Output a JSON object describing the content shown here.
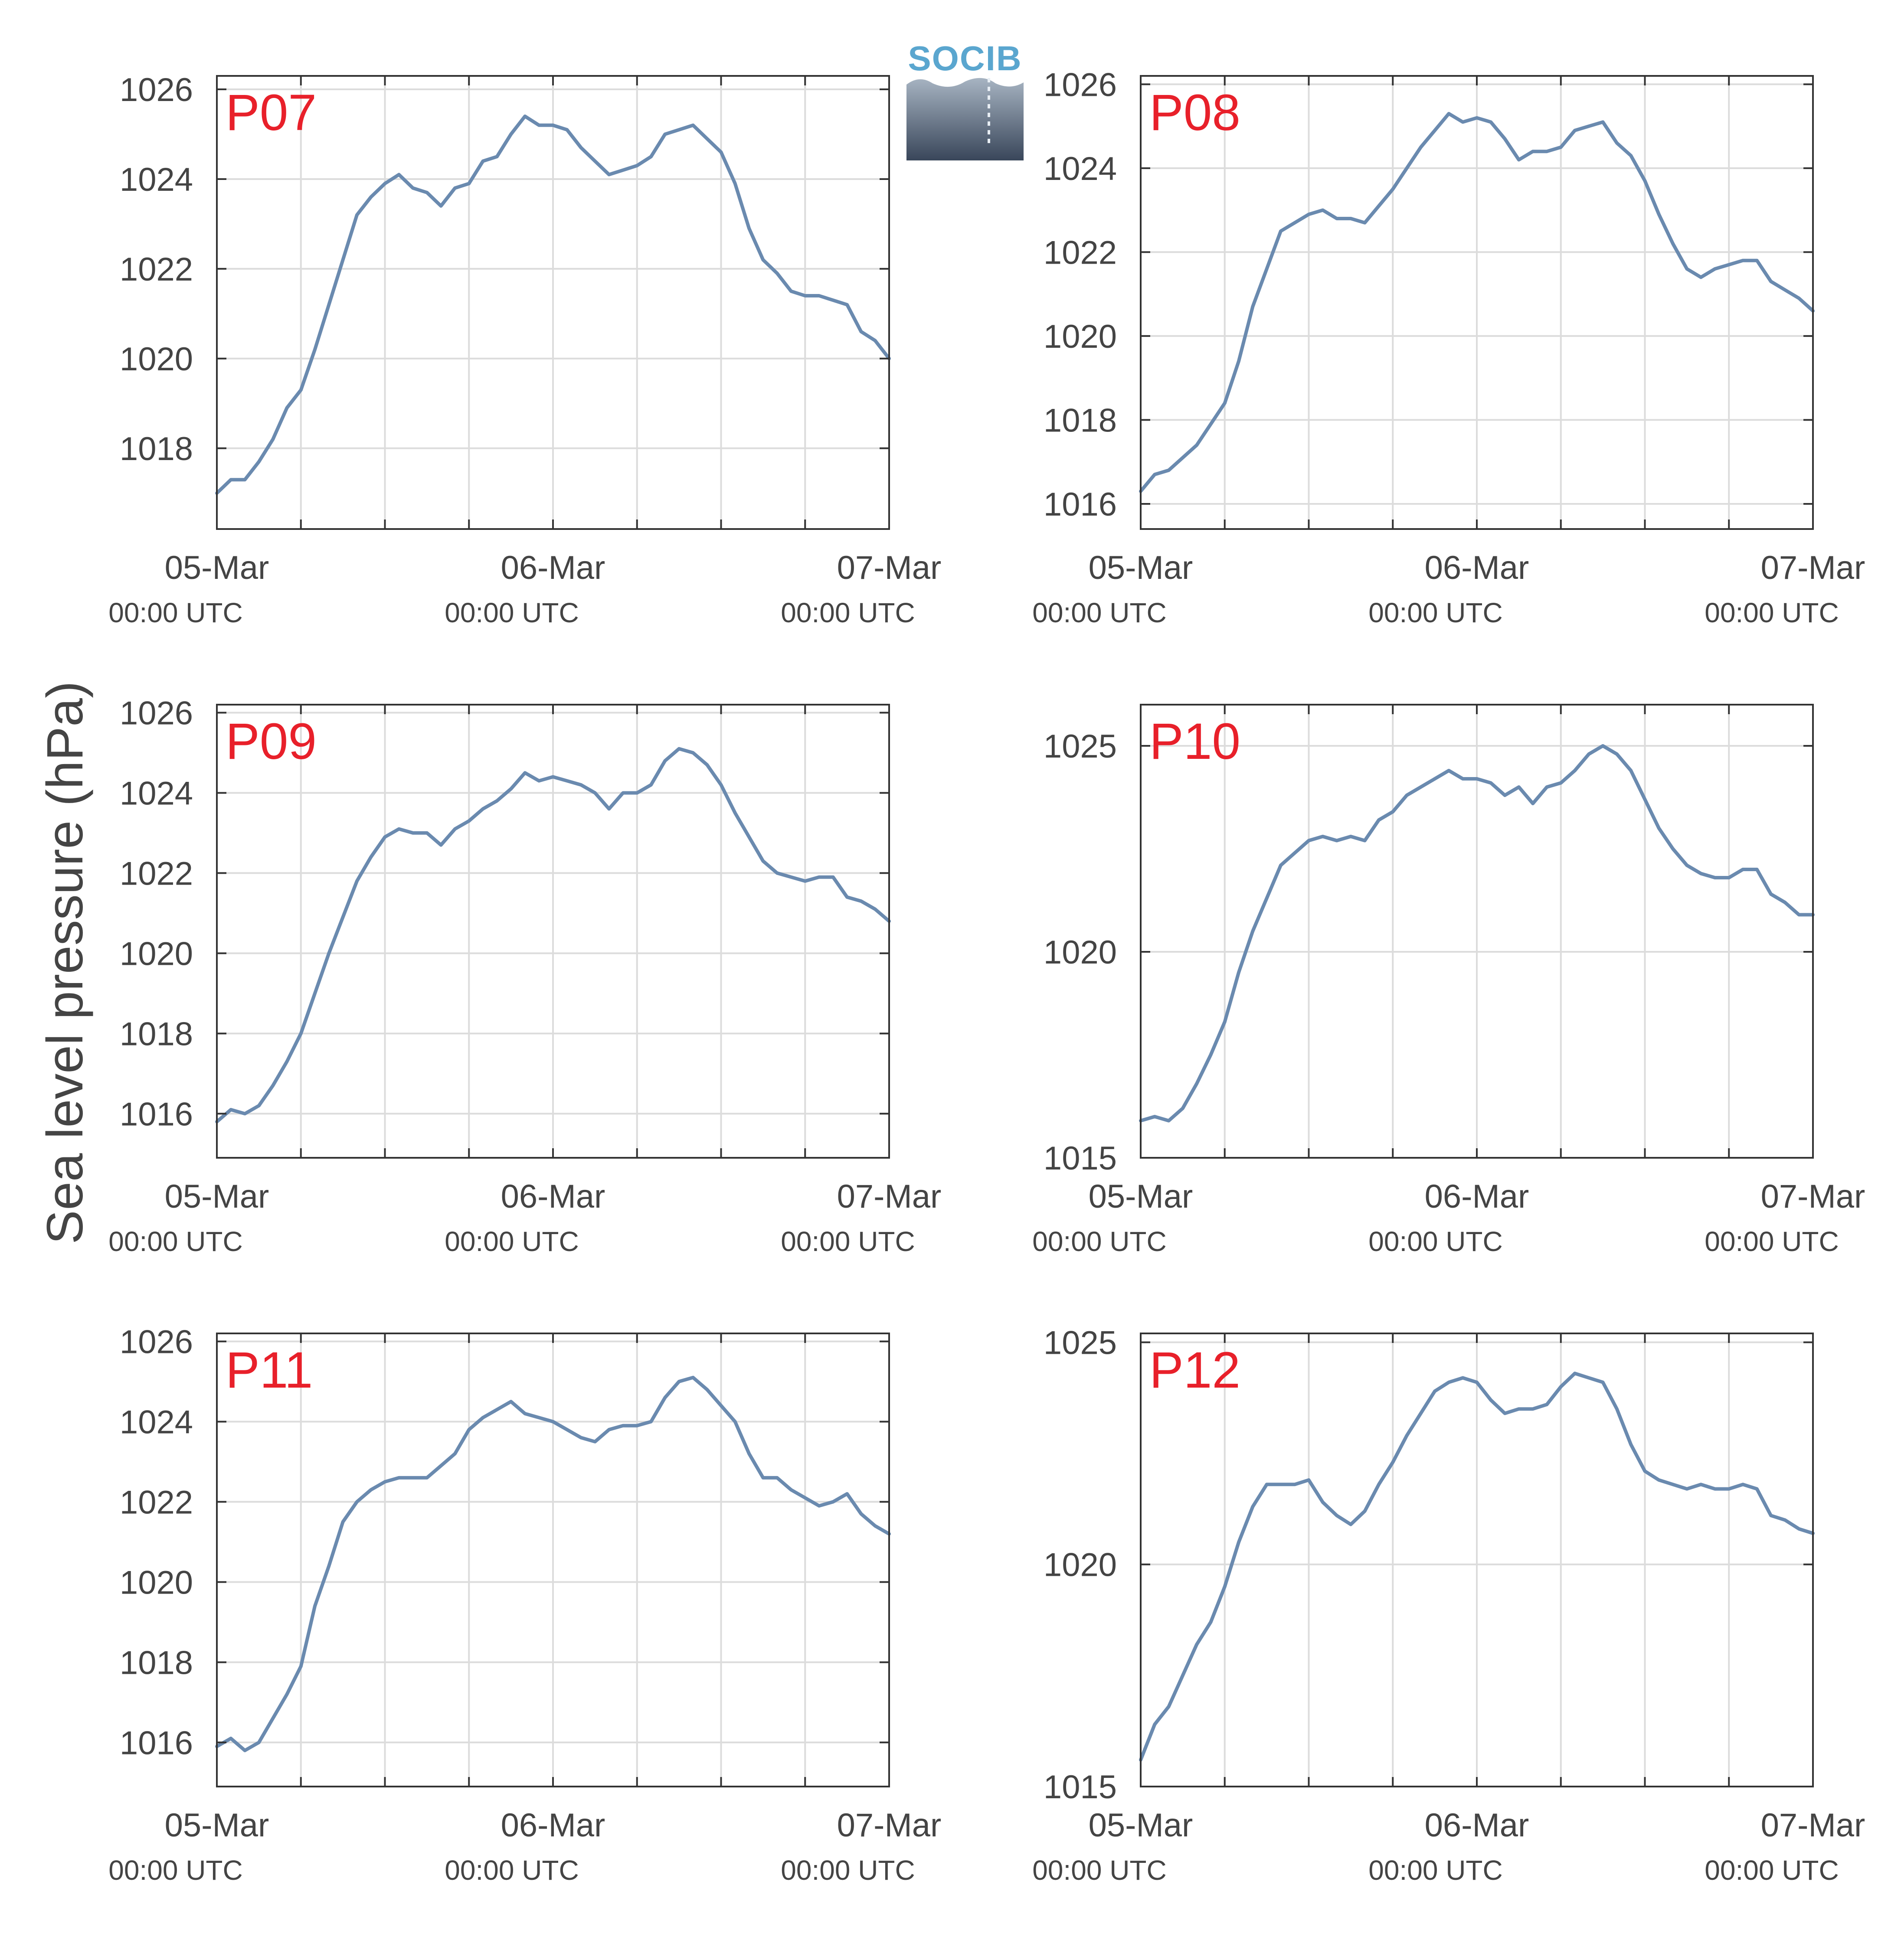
{
  "figure": {
    "ylabel": "Sea level pressure (hPa)",
    "logo_text": "SOCIB",
    "line_color": "#6a8aaf",
    "label_color": "#e8202a",
    "grid_color": "#dcdcdc",
    "axis_color": "#333333",
    "text_color": "#444444"
  },
  "chart_data": [
    {
      "type": "line",
      "panel_label": "P07",
      "xlim": [
        0,
        48
      ],
      "ylim": [
        1016.2,
        1026.3
      ],
      "yticks": [
        1018,
        1020,
        1022,
        1024,
        1026
      ],
      "xticks": [
        {
          "x": 0,
          "label": "05-Mar",
          "sublabel": "00:00 UTC"
        },
        {
          "x": 24,
          "label": "06-Mar",
          "sublabel": "00:00 UTC"
        },
        {
          "x": 48,
          "label": "07-Mar",
          "sublabel": "00:00 UTC"
        }
      ],
      "x_unit": "hours since 05-Mar 00:00 UTC",
      "x": [
        0,
        1,
        2,
        3,
        4,
        5,
        6,
        7,
        8,
        9,
        10,
        11,
        12,
        13,
        14,
        15,
        16,
        17,
        18,
        19,
        20,
        21,
        22,
        23,
        24,
        25,
        26,
        27,
        28,
        29,
        30,
        31,
        32,
        33,
        34,
        35,
        36,
        37,
        38,
        39,
        40,
        41,
        42,
        43,
        44,
        45,
        46,
        47,
        48
      ],
      "values": [
        1017.0,
        1017.3,
        1017.3,
        1017.7,
        1018.2,
        1018.9,
        1019.3,
        1020.2,
        1021.2,
        1022.2,
        1023.2,
        1023.6,
        1023.9,
        1024.1,
        1023.8,
        1023.7,
        1023.4,
        1023.8,
        1023.9,
        1024.4,
        1024.5,
        1025.0,
        1025.4,
        1025.2,
        1025.2,
        1025.1,
        1024.7,
        1024.4,
        1024.1,
        1024.2,
        1024.3,
        1024.5,
        1025.0,
        1025.1,
        1025.2,
        1024.9,
        1024.6,
        1023.9,
        1022.9,
        1022.2,
        1021.9,
        1021.5,
        1021.4,
        1021.4,
        1021.3,
        1021.2,
        1020.6,
        1020.4,
        1020.0
      ]
    },
    {
      "type": "line",
      "panel_label": "P08",
      "xlim": [
        0,
        48
      ],
      "ylim": [
        1015.4,
        1026.2
      ],
      "yticks": [
        1016,
        1018,
        1020,
        1022,
        1024,
        1026
      ],
      "xticks": [
        {
          "x": 0,
          "label": "05-Mar",
          "sublabel": "00:00 UTC"
        },
        {
          "x": 24,
          "label": "06-Mar",
          "sublabel": "00:00 UTC"
        },
        {
          "x": 48,
          "label": "07-Mar",
          "sublabel": "00:00 UTC"
        }
      ],
      "x_unit": "hours since 05-Mar 00:00 UTC",
      "x": [
        0,
        1,
        2,
        3,
        4,
        5,
        6,
        7,
        8,
        9,
        10,
        11,
        12,
        13,
        14,
        15,
        16,
        17,
        18,
        19,
        20,
        21,
        22,
        23,
        24,
        25,
        26,
        27,
        28,
        29,
        30,
        31,
        32,
        33,
        34,
        35,
        36,
        37,
        38,
        39,
        40,
        41,
        42,
        43,
        44,
        45,
        46,
        47,
        48
      ],
      "values": [
        1016.3,
        1016.7,
        1016.8,
        1017.1,
        1017.4,
        1017.9,
        1018.4,
        1019.4,
        1020.7,
        1021.6,
        1022.5,
        1022.7,
        1022.9,
        1023.0,
        1022.8,
        1022.8,
        1022.7,
        1023.1,
        1023.5,
        1024.0,
        1024.5,
        1024.9,
        1025.3,
        1025.1,
        1025.2,
        1025.1,
        1024.7,
        1024.2,
        1024.4,
        1024.4,
        1024.5,
        1024.9,
        1025.0,
        1025.1,
        1024.6,
        1024.3,
        1023.7,
        1022.9,
        1022.2,
        1021.6,
        1021.4,
        1021.6,
        1021.7,
        1021.8,
        1021.8,
        1021.3,
        1021.1,
        1020.9,
        1020.6
      ]
    },
    {
      "type": "line",
      "panel_label": "P09",
      "xlim": [
        0,
        48
      ],
      "ylim": [
        1014.9,
        1026.2
      ],
      "yticks": [
        1016,
        1018,
        1020,
        1022,
        1024,
        1026
      ],
      "xticks": [
        {
          "x": 0,
          "label": "05-Mar",
          "sublabel": "00:00 UTC"
        },
        {
          "x": 24,
          "label": "06-Mar",
          "sublabel": "00:00 UTC"
        },
        {
          "x": 48,
          "label": "07-Mar",
          "sublabel": "00:00 UTC"
        }
      ],
      "x_unit": "hours since 05-Mar 00:00 UTC",
      "x": [
        0,
        1,
        2,
        3,
        4,
        5,
        6,
        7,
        8,
        9,
        10,
        11,
        12,
        13,
        14,
        15,
        16,
        17,
        18,
        19,
        20,
        21,
        22,
        23,
        24,
        25,
        26,
        27,
        28,
        29,
        30,
        31,
        32,
        33,
        34,
        35,
        36,
        37,
        38,
        39,
        40,
        41,
        42,
        43,
        44,
        45,
        46,
        47,
        48
      ],
      "values": [
        1015.8,
        1016.1,
        1016.0,
        1016.2,
        1016.7,
        1017.3,
        1018.0,
        1019.0,
        1020.0,
        1020.9,
        1021.8,
        1022.4,
        1022.9,
        1023.1,
        1023.0,
        1023.0,
        1022.7,
        1023.1,
        1023.3,
        1023.6,
        1023.8,
        1024.1,
        1024.5,
        1024.3,
        1024.4,
        1024.3,
        1024.2,
        1024.0,
        1023.6,
        1024.0,
        1024.0,
        1024.2,
        1024.8,
        1025.1,
        1025.0,
        1024.7,
        1024.2,
        1023.5,
        1022.9,
        1022.3,
        1022.0,
        1021.9,
        1021.8,
        1021.9,
        1021.9,
        1021.4,
        1021.3,
        1021.1,
        1020.8
      ]
    },
    {
      "type": "line",
      "panel_label": "P10",
      "xlim": [
        0,
        48
      ],
      "ylim": [
        1015,
        1026
      ],
      "yticks": [
        1015,
        1020,
        1025
      ],
      "xticks": [
        {
          "x": 0,
          "label": "05-Mar",
          "sublabel": "00:00 UTC"
        },
        {
          "x": 24,
          "label": "06-Mar",
          "sublabel": "00:00 UTC"
        },
        {
          "x": 48,
          "label": "07-Mar",
          "sublabel": "00:00 UTC"
        }
      ],
      "x_unit": "hours since 05-Mar 00:00 UTC",
      "x": [
        0,
        1,
        2,
        3,
        4,
        5,
        6,
        7,
        8,
        9,
        10,
        11,
        12,
        13,
        14,
        15,
        16,
        17,
        18,
        19,
        20,
        21,
        22,
        23,
        24,
        25,
        26,
        27,
        28,
        29,
        30,
        31,
        32,
        33,
        34,
        35,
        36,
        37,
        38,
        39,
        40,
        41,
        42,
        43,
        44,
        45,
        46,
        47,
        48
      ],
      "values": [
        1015.9,
        1016.0,
        1015.9,
        1016.2,
        1016.8,
        1017.5,
        1018.3,
        1019.5,
        1020.5,
        1021.3,
        1022.1,
        1022.4,
        1022.7,
        1022.8,
        1022.7,
        1022.8,
        1022.7,
        1023.2,
        1023.4,
        1023.8,
        1024.0,
        1024.2,
        1024.4,
        1024.2,
        1024.2,
        1024.1,
        1023.8,
        1024.0,
        1023.6,
        1024.0,
        1024.1,
        1024.4,
        1024.8,
        1025.0,
        1024.8,
        1024.4,
        1023.7,
        1023.0,
        1022.5,
        1022.1,
        1021.9,
        1021.8,
        1021.8,
        1022.0,
        1022.0,
        1021.4,
        1021.2,
        1020.9,
        1020.9
      ]
    },
    {
      "type": "line",
      "panel_label": "P11",
      "xlim": [
        0,
        48
      ],
      "ylim": [
        1014.9,
        1026.2
      ],
      "yticks": [
        1016,
        1018,
        1020,
        1022,
        1024,
        1026
      ],
      "xticks": [
        {
          "x": 0,
          "label": "05-Mar",
          "sublabel": "00:00 UTC"
        },
        {
          "x": 24,
          "label": "06-Mar",
          "sublabel": "00:00 UTC"
        },
        {
          "x": 48,
          "label": "07-Mar",
          "sublabel": "00:00 UTC"
        }
      ],
      "x_unit": "hours since 05-Mar 00:00 UTC",
      "x": [
        0,
        1,
        2,
        3,
        4,
        5,
        6,
        7,
        8,
        9,
        10,
        11,
        12,
        13,
        14,
        15,
        16,
        17,
        18,
        19,
        20,
        21,
        22,
        23,
        24,
        25,
        26,
        27,
        28,
        29,
        30,
        31,
        32,
        33,
        34,
        35,
        36,
        37,
        38,
        39,
        40,
        41,
        42,
        43,
        44,
        45,
        46,
        47,
        48
      ],
      "values": [
        1015.9,
        1016.1,
        1015.8,
        1016.0,
        1016.6,
        1017.2,
        1017.9,
        1019.4,
        1020.4,
        1021.5,
        1022.0,
        1022.3,
        1022.5,
        1022.6,
        1022.6,
        1022.6,
        1022.9,
        1023.2,
        1023.8,
        1024.1,
        1024.3,
        1024.5,
        1024.2,
        1024.1,
        1024.0,
        1023.8,
        1023.6,
        1023.5,
        1023.8,
        1023.9,
        1023.9,
        1024.0,
        1024.6,
        1025.0,
        1025.1,
        1024.8,
        1024.4,
        1024.0,
        1023.2,
        1022.6,
        1022.6,
        1022.3,
        1022.1,
        1021.9,
        1022.0,
        1022.2,
        1021.7,
        1021.4,
        1021.2
      ]
    },
    {
      "type": "line",
      "panel_label": "P12",
      "xlim": [
        0,
        48
      ],
      "ylim": [
        1015,
        1025.2
      ],
      "yticks": [
        1015,
        1020,
        1025
      ],
      "xticks": [
        {
          "x": 0,
          "label": "05-Mar",
          "sublabel": "00:00 UTC"
        },
        {
          "x": 24,
          "label": "06-Mar",
          "sublabel": "00:00 UTC"
        },
        {
          "x": 48,
          "label": "07-Mar",
          "sublabel": "00:00 UTC"
        }
      ],
      "x_unit": "hours since 05-Mar 00:00 UTC",
      "x": [
        0,
        1,
        2,
        3,
        4,
        5,
        6,
        7,
        8,
        9,
        10,
        11,
        12,
        13,
        14,
        15,
        16,
        17,
        18,
        19,
        20,
        21,
        22,
        23,
        24,
        25,
        26,
        27,
        28,
        29,
        30,
        31,
        32,
        33,
        34,
        35,
        36,
        37,
        38,
        39,
        40,
        41,
        42,
        43,
        44,
        45,
        46,
        47,
        48
      ],
      "values": [
        1015.6,
        1016.4,
        1016.8,
        1017.5,
        1018.2,
        1018.7,
        1019.5,
        1020.5,
        1021.3,
        1021.8,
        1021.8,
        1021.8,
        1021.9,
        1021.4,
        1021.1,
        1020.9,
        1021.2,
        1021.8,
        1022.3,
        1022.9,
        1023.4,
        1023.9,
        1024.1,
        1024.2,
        1024.1,
        1023.7,
        1023.4,
        1023.5,
        1023.5,
        1023.6,
        1024.0,
        1024.3,
        1024.2,
        1024.1,
        1023.5,
        1022.7,
        1022.1,
        1021.9,
        1021.8,
        1021.7,
        1021.8,
        1021.7,
        1021.7,
        1021.8,
        1021.7,
        1021.1,
        1021.0,
        1020.8,
        1020.7
      ]
    }
  ]
}
